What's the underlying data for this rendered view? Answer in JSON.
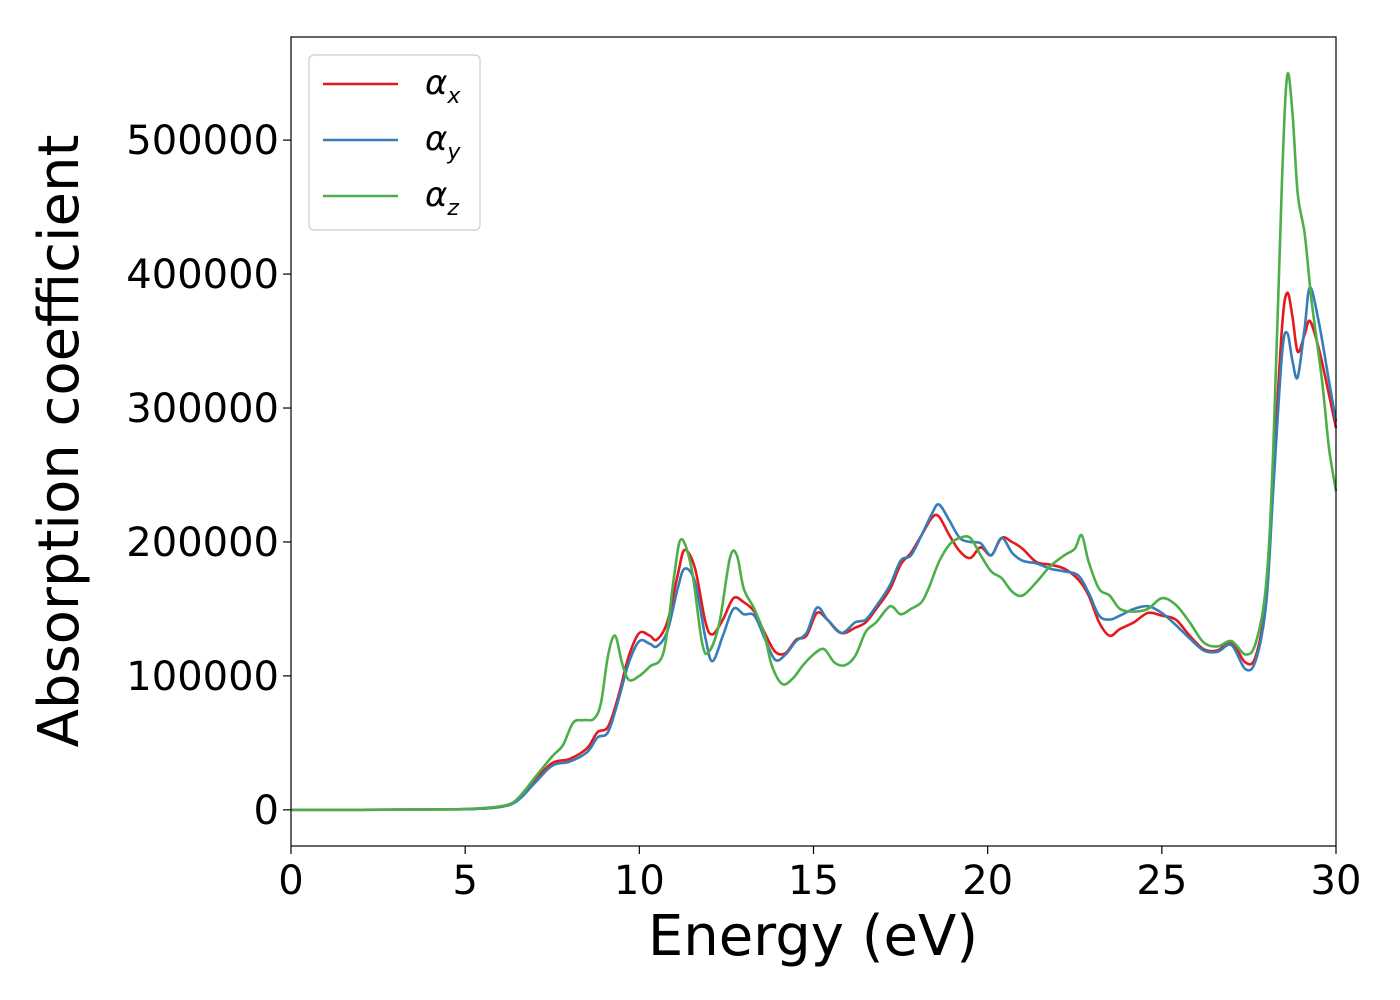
{
  "chart_data": {
    "type": "line",
    "xlabel": "Energy (eV)",
    "ylabel": "Absorption coefficient",
    "xlim": [
      0,
      30
    ],
    "ylim": [
      -27000,
      577000
    ],
    "x_ticks": [
      0,
      5,
      10,
      15,
      20,
      25,
      30
    ],
    "y_ticks": [
      0,
      100000,
      200000,
      300000,
      400000,
      500000
    ],
    "x_tick_labels": [
      "0",
      "5",
      "10",
      "15",
      "20",
      "25",
      "30"
    ],
    "y_tick_labels": [
      "0",
      "100000",
      "200000",
      "300000",
      "400000",
      "500000"
    ],
    "grid": false,
    "legend_position": "top-left",
    "series": [
      {
        "name": "α",
        "subscript": "x",
        "color": "#e41a1c",
        "points": [
          [
            0,
            0
          ],
          [
            2,
            0
          ],
          [
            4,
            300
          ],
          [
            5,
            500
          ],
          [
            5.8,
            1500
          ],
          [
            6.3,
            4000
          ],
          [
            6.6,
            10000
          ],
          [
            7.0,
            22000
          ],
          [
            7.5,
            35000
          ],
          [
            8.0,
            38000
          ],
          [
            8.5,
            46000
          ],
          [
            8.8,
            58000
          ],
          [
            9.1,
            62000
          ],
          [
            9.4,
            85000
          ],
          [
            9.7,
            115000
          ],
          [
            10.0,
            132000
          ],
          [
            10.3,
            130000
          ],
          [
            10.5,
            127000
          ],
          [
            10.8,
            140000
          ],
          [
            11.1,
            175000
          ],
          [
            11.3,
            194000
          ],
          [
            11.6,
            180000
          ],
          [
            11.9,
            140000
          ],
          [
            12.1,
            131000
          ],
          [
            12.4,
            142000
          ],
          [
            12.7,
            158000
          ],
          [
            13.0,
            155000
          ],
          [
            13.3,
            148000
          ],
          [
            13.6,
            132000
          ],
          [
            13.9,
            118000
          ],
          [
            14.2,
            117000
          ],
          [
            14.5,
            127000
          ],
          [
            14.8,
            130000
          ],
          [
            15.1,
            147000
          ],
          [
            15.4,
            142000
          ],
          [
            15.8,
            132000
          ],
          [
            16.2,
            136000
          ],
          [
            16.5,
            140000
          ],
          [
            16.8,
            150000
          ],
          [
            17.2,
            165000
          ],
          [
            17.5,
            183000
          ],
          [
            17.8,
            192000
          ],
          [
            18.1,
            205000
          ],
          [
            18.4,
            218000
          ],
          [
            18.6,
            219000
          ],
          [
            18.9,
            205000
          ],
          [
            19.2,
            193000
          ],
          [
            19.5,
            188000
          ],
          [
            19.8,
            196000
          ],
          [
            20.1,
            190000
          ],
          [
            20.4,
            203000
          ],
          [
            20.7,
            200000
          ],
          [
            21.0,
            195000
          ],
          [
            21.4,
            185000
          ],
          [
            21.8,
            183000
          ],
          [
            22.2,
            180000
          ],
          [
            22.6,
            172000
          ],
          [
            22.9,
            160000
          ],
          [
            23.2,
            140000
          ],
          [
            23.5,
            130000
          ],
          [
            23.8,
            135000
          ],
          [
            24.2,
            140000
          ],
          [
            24.6,
            147000
          ],
          [
            25.0,
            145000
          ],
          [
            25.4,
            142000
          ],
          [
            25.8,
            130000
          ],
          [
            26.2,
            120000
          ],
          [
            26.6,
            119000
          ],
          [
            27.0,
            125000
          ],
          [
            27.4,
            110000
          ],
          [
            27.7,
            115000
          ],
          [
            28.0,
            160000
          ],
          [
            28.2,
            250000
          ],
          [
            28.45,
            360000
          ],
          [
            28.6,
            386000
          ],
          [
            28.75,
            368000
          ],
          [
            28.9,
            342000
          ],
          [
            29.1,
            355000
          ],
          [
            29.25,
            365000
          ],
          [
            29.5,
            345000
          ],
          [
            29.8,
            310000
          ],
          [
            30.0,
            285000
          ]
        ]
      },
      {
        "name": "α",
        "subscript": "y",
        "color": "#377eb8",
        "points": [
          [
            0,
            0
          ],
          [
            2,
            0
          ],
          [
            4,
            300
          ],
          [
            5,
            500
          ],
          [
            5.8,
            1500
          ],
          [
            6.3,
            4000
          ],
          [
            6.6,
            9000
          ],
          [
            7.0,
            20000
          ],
          [
            7.5,
            33000
          ],
          [
            8.0,
            36000
          ],
          [
            8.5,
            43000
          ],
          [
            8.8,
            54000
          ],
          [
            9.1,
            58000
          ],
          [
            9.4,
            82000
          ],
          [
            9.7,
            110000
          ],
          [
            10.0,
            126000
          ],
          [
            10.3,
            124000
          ],
          [
            10.5,
            122000
          ],
          [
            10.8,
            133000
          ],
          [
            11.1,
            165000
          ],
          [
            11.3,
            180000
          ],
          [
            11.6,
            170000
          ],
          [
            11.9,
            128000
          ],
          [
            12.1,
            111000
          ],
          [
            12.4,
            130000
          ],
          [
            12.7,
            150000
          ],
          [
            13.0,
            146000
          ],
          [
            13.3,
            145000
          ],
          [
            13.6,
            128000
          ],
          [
            13.9,
            112000
          ],
          [
            14.2,
            116000
          ],
          [
            14.5,
            126000
          ],
          [
            14.8,
            132000
          ],
          [
            15.1,
            151000
          ],
          [
            15.4,
            142000
          ],
          [
            15.8,
            132000
          ],
          [
            16.2,
            140000
          ],
          [
            16.5,
            142000
          ],
          [
            16.8,
            152000
          ],
          [
            17.2,
            168000
          ],
          [
            17.5,
            186000
          ],
          [
            17.8,
            190000
          ],
          [
            18.1,
            205000
          ],
          [
            18.4,
            221000
          ],
          [
            18.6,
            228000
          ],
          [
            18.9,
            216000
          ],
          [
            19.2,
            203000
          ],
          [
            19.5,
            200000
          ],
          [
            19.8,
            199000
          ],
          [
            20.1,
            190000
          ],
          [
            20.4,
            203000
          ],
          [
            20.7,
            192000
          ],
          [
            21.0,
            186000
          ],
          [
            21.4,
            184000
          ],
          [
            21.8,
            180000
          ],
          [
            22.2,
            178000
          ],
          [
            22.6,
            175000
          ],
          [
            22.9,
            162000
          ],
          [
            23.2,
            145000
          ],
          [
            23.5,
            142000
          ],
          [
            23.8,
            145000
          ],
          [
            24.2,
            150000
          ],
          [
            24.6,
            152000
          ],
          [
            25.0,
            147000
          ],
          [
            25.4,
            138000
          ],
          [
            25.8,
            128000
          ],
          [
            26.2,
            119000
          ],
          [
            26.6,
            118000
          ],
          [
            27.0,
            123000
          ],
          [
            27.4,
            105000
          ],
          [
            27.7,
            112000
          ],
          [
            28.0,
            155000
          ],
          [
            28.2,
            240000
          ],
          [
            28.45,
            340000
          ],
          [
            28.6,
            356000
          ],
          [
            28.75,
            335000
          ],
          [
            28.9,
            323000
          ],
          [
            29.1,
            360000
          ],
          [
            29.25,
            390000
          ],
          [
            29.5,
            365000
          ],
          [
            29.8,
            320000
          ],
          [
            30.0,
            290000
          ]
        ]
      },
      {
        "name": "α",
        "subscript": "z",
        "color": "#4daf4a",
        "points": [
          [
            0,
            0
          ],
          [
            2,
            0
          ],
          [
            4,
            300
          ],
          [
            5,
            600
          ],
          [
            5.8,
            2000
          ],
          [
            6.3,
            4500
          ],
          [
            6.6,
            11000
          ],
          [
            7.0,
            24000
          ],
          [
            7.5,
            40000
          ],
          [
            7.8,
            48000
          ],
          [
            8.1,
            65000
          ],
          [
            8.4,
            67000
          ],
          [
            8.7,
            68000
          ],
          [
            8.9,
            80000
          ],
          [
            9.1,
            115000
          ],
          [
            9.3,
            130000
          ],
          [
            9.5,
            110000
          ],
          [
            9.7,
            97000
          ],
          [
            10.0,
            100000
          ],
          [
            10.3,
            107000
          ],
          [
            10.7,
            118000
          ],
          [
            11.0,
            175000
          ],
          [
            11.2,
            202000
          ],
          [
            11.5,
            180000
          ],
          [
            11.8,
            125000
          ],
          [
            12.0,
            118000
          ],
          [
            12.3,
            140000
          ],
          [
            12.6,
            188000
          ],
          [
            12.8,
            190000
          ],
          [
            13.0,
            165000
          ],
          [
            13.3,
            150000
          ],
          [
            13.6,
            130000
          ],
          [
            13.8,
            108000
          ],
          [
            14.1,
            94000
          ],
          [
            14.4,
            98000
          ],
          [
            14.7,
            108000
          ],
          [
            15.0,
            116000
          ],
          [
            15.3,
            120000
          ],
          [
            15.6,
            110000
          ],
          [
            15.9,
            108000
          ],
          [
            16.2,
            115000
          ],
          [
            16.5,
            133000
          ],
          [
            16.8,
            140000
          ],
          [
            17.2,
            152000
          ],
          [
            17.5,
            146000
          ],
          [
            17.8,
            150000
          ],
          [
            18.1,
            155000
          ],
          [
            18.3,
            165000
          ],
          [
            18.6,
            185000
          ],
          [
            18.9,
            198000
          ],
          [
            19.2,
            203000
          ],
          [
            19.5,
            203000
          ],
          [
            19.8,
            190000
          ],
          [
            20.1,
            178000
          ],
          [
            20.4,
            173000
          ],
          [
            20.7,
            163000
          ],
          [
            21.0,
            160000
          ],
          [
            21.4,
            170000
          ],
          [
            21.8,
            182000
          ],
          [
            22.2,
            190000
          ],
          [
            22.5,
            195000
          ],
          [
            22.7,
            205000
          ],
          [
            22.9,
            185000
          ],
          [
            23.2,
            165000
          ],
          [
            23.5,
            160000
          ],
          [
            23.8,
            150000
          ],
          [
            24.2,
            148000
          ],
          [
            24.6,
            150000
          ],
          [
            25.0,
            158000
          ],
          [
            25.4,
            153000
          ],
          [
            25.8,
            140000
          ],
          [
            26.2,
            125000
          ],
          [
            26.6,
            122000
          ],
          [
            27.0,
            126000
          ],
          [
            27.4,
            116000
          ],
          [
            27.7,
            125000
          ],
          [
            28.0,
            170000
          ],
          [
            28.2,
            270000
          ],
          [
            28.45,
            470000
          ],
          [
            28.6,
            548000
          ],
          [
            28.75,
            520000
          ],
          [
            28.9,
            460000
          ],
          [
            29.1,
            430000
          ],
          [
            29.3,
            380000
          ],
          [
            29.6,
            320000
          ],
          [
            29.8,
            270000
          ],
          [
            30.0,
            238000
          ]
        ]
      }
    ]
  }
}
